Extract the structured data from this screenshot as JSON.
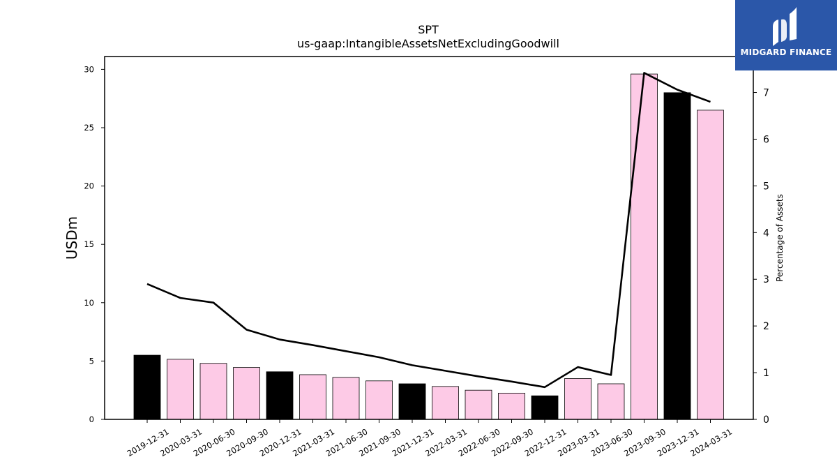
{
  "chart_data": {
    "type": "bar",
    "title": "SPT",
    "subtitle": "us-gaap:IntangibleAssetsNetExcludingGoodwill",
    "ylabel": "USDm",
    "y2label": "Percentage of Assets",
    "categories": [
      "2019-12-31",
      "2020-03-31",
      "2020-06-30",
      "2020-09-30",
      "2020-12-31",
      "2021-03-31",
      "2021-06-30",
      "2021-09-30",
      "2021-12-31",
      "2022-03-31",
      "2022-06-30",
      "2022-09-30",
      "2022-12-31",
      "2023-03-31",
      "2023-06-30",
      "2023-09-30",
      "2023-12-31",
      "2024-03-31"
    ],
    "series": [
      {
        "type": "bar",
        "axis": "left",
        "values": [
          5.5,
          5.15,
          4.8,
          4.45,
          4.08,
          3.83,
          3.6,
          3.3,
          3.05,
          2.82,
          2.5,
          2.25,
          2.02,
          3.5,
          3.05,
          29.6,
          28.0,
          26.5
        ],
        "colors": [
          "#000000",
          "#fdcae6",
          "#fdcae6",
          "#fdcae6",
          "#000000",
          "#fdcae6",
          "#fdcae6",
          "#fdcae6",
          "#000000",
          "#fdcae6",
          "#fdcae6",
          "#fdcae6",
          "#000000",
          "#fdcae6",
          "#fdcae6",
          "#fdcae6",
          "#000000",
          "#fdcae6"
        ]
      },
      {
        "type": "line",
        "axis": "right",
        "color": "#000000",
        "values": [
          2.9,
          2.6,
          2.5,
          1.92,
          1.71,
          1.59,
          1.46,
          1.33,
          1.16,
          1.04,
          0.92,
          0.81,
          0.69,
          1.12,
          0.95,
          7.42,
          7.06,
          6.8
        ]
      }
    ],
    "ylim": [
      0,
      31.1
    ],
    "yticks": [
      0,
      5,
      10,
      15,
      20,
      25,
      30
    ],
    "y2lim": [
      0,
      7.77
    ],
    "y2ticks": [
      0,
      1,
      2,
      3,
      4,
      5,
      6,
      7
    ],
    "grid": false,
    "legend": "none"
  },
  "branding": {
    "logo_text": "MIDGARD FINANCE",
    "logo_color": "#2b57a9"
  }
}
